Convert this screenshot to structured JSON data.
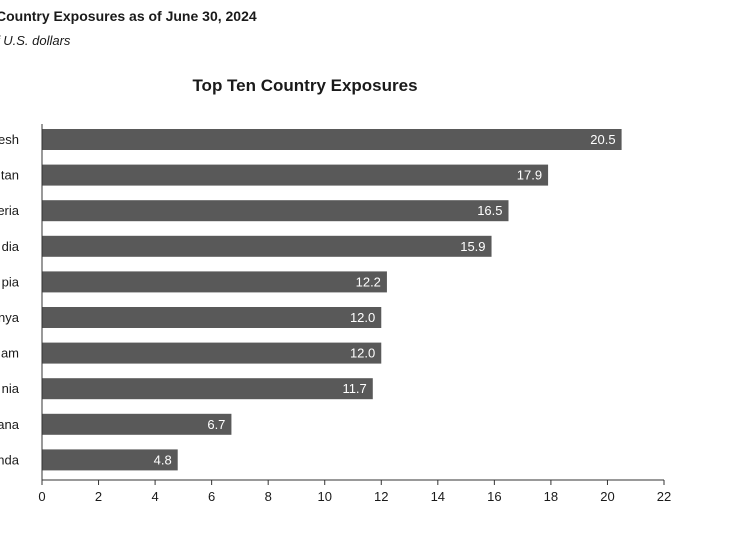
{
  "header": {
    "title": "Country Exposures as of June 30, 2024",
    "subtitle": "f U.S. dollars"
  },
  "chart_data": {
    "type": "bar",
    "orientation": "horizontal",
    "title": "Top Ten Country Exposures",
    "categories": [
      "esh",
      "tan",
      "eria",
      "dia",
      "pia",
      "nya",
      "am",
      "nia",
      "ana",
      "nda"
    ],
    "values": [
      20.5,
      17.9,
      16.5,
      15.9,
      12.2,
      12.0,
      12.0,
      11.7,
      6.7,
      4.8
    ],
    "value_labels": [
      "20.5",
      "17.9",
      "16.5",
      "15.9",
      "12.2",
      "12.0",
      "12.0",
      "11.7",
      "6.7",
      "4.8"
    ],
    "xlim": [
      0,
      22
    ],
    "xticks": [
      "0",
      "2",
      "4",
      "6",
      "8",
      "10",
      "12",
      "14",
      "16",
      "18",
      "20",
      "22"
    ],
    "grid": false,
    "bar_color": "#595959"
  }
}
